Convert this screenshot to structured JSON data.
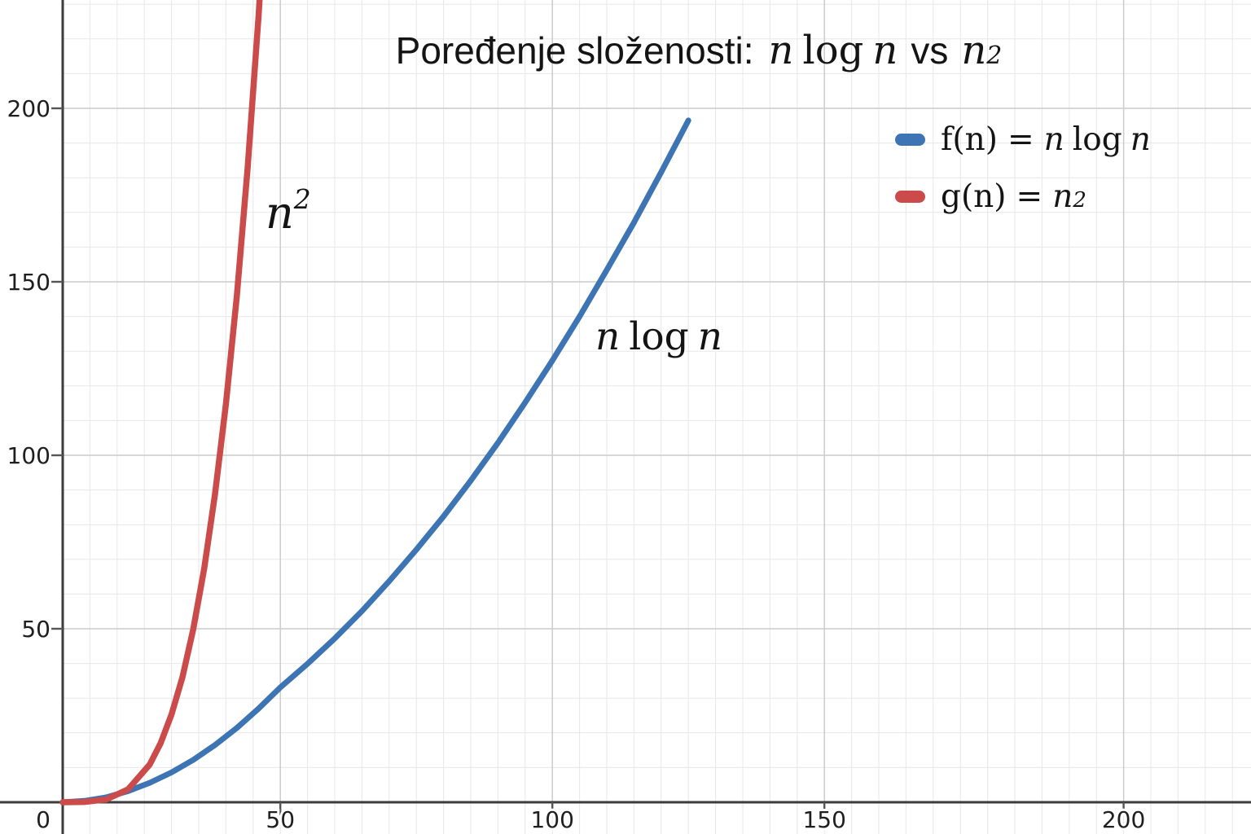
{
  "title": {
    "prefix": "Poređenje složenosti:",
    "m1a": "n",
    "m1op": "log",
    "m1b": "n",
    "vs": "vs",
    "m2base": "n",
    "m2sup": "2"
  },
  "legend": {
    "item1": {
      "fn": "f(n)",
      "eq": "=",
      "a": "n",
      "op": "log",
      "b": "n"
    },
    "item2": {
      "fn": "g(n)",
      "eq": "=",
      "base": "n",
      "sup": "2"
    }
  },
  "annotations": {
    "squared": {
      "base": "n",
      "sup": "2"
    },
    "nlogn": {
      "a": "n",
      "op": "log",
      "b": "n"
    }
  },
  "chart_data": {
    "type": "line",
    "title": "Poređenje složenosti: n log n vs n²",
    "xlabel": "",
    "ylabel": "",
    "xlim": [
      0,
      220
    ],
    "ylim": [
      0,
      231
    ],
    "x_ticks": [
      0,
      50,
      100,
      150,
      200
    ],
    "y_ticks": [
      50,
      100,
      150,
      200
    ],
    "grid": "minor and major gridlines on",
    "legend_position": "upper right",
    "axis_color": "#3c3c3c",
    "major_grid_color": "#cccccc",
    "minor_grid_color": "#e7e7e7",
    "tick_label_color": "#1f1f1f",
    "series": [
      {
        "name": "f(n) = n log n",
        "color": "#3c74b4",
        "x": [
          0,
          5,
          10,
          15,
          20,
          25,
          30,
          35,
          40,
          45,
          50,
          55,
          60,
          65,
          70,
          75,
          80,
          85,
          90,
          95,
          100,
          105,
          110,
          115,
          120,
          125
        ],
        "y": [
          0,
          0.4,
          1.4,
          3.2,
          5.6,
          8.6,
          12.2,
          16.5,
          21.4,
          27.0,
          33.1,
          39.9,
          47.2,
          55.1,
          63.7,
          72.8,
          82.4,
          92.7,
          103.6,
          115.2,
          127.3,
          140.0,
          153.4,
          167.1,
          181.6,
          196.5
        ]
      },
      {
        "name": "g(n) = n²",
        "color": "#cb4a4a",
        "x": [
          0,
          5,
          10,
          15,
          20,
          22.5,
          25,
          27.5,
          30,
          32.5,
          35,
          37.5,
          40,
          42.5,
          45,
          45.5
        ],
        "y": [
          0,
          0.1,
          0.8,
          3.7,
          10.9,
          17.0,
          25.3,
          36.0,
          49.9,
          67.3,
          88.8,
          114.8,
          145.9,
          183.0,
          226.7,
          237.0
        ]
      }
    ]
  }
}
